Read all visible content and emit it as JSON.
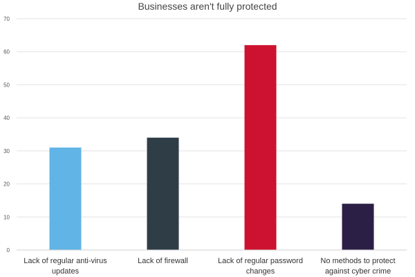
{
  "chart_data": {
    "type": "bar",
    "title": "Businesses aren't fully protected",
    "xlabel": "",
    "ylabel": "",
    "categories": [
      [
        "Lack of regular anti-virus",
        "updates"
      ],
      [
        "Lack of firewall"
      ],
      [
        "Lack of regular password",
        "changes"
      ],
      [
        "No methods to protect",
        "against cyber crime"
      ]
    ],
    "values": [
      31,
      34,
      62,
      14
    ],
    "colors": [
      "#61b4e6",
      "#2f3d47",
      "#cc1230",
      "#2c1f45"
    ],
    "ylim": [
      0,
      70
    ],
    "yticks": [
      0,
      10,
      20,
      30,
      40,
      50,
      60,
      70
    ],
    "grid": true,
    "legend": "none"
  }
}
